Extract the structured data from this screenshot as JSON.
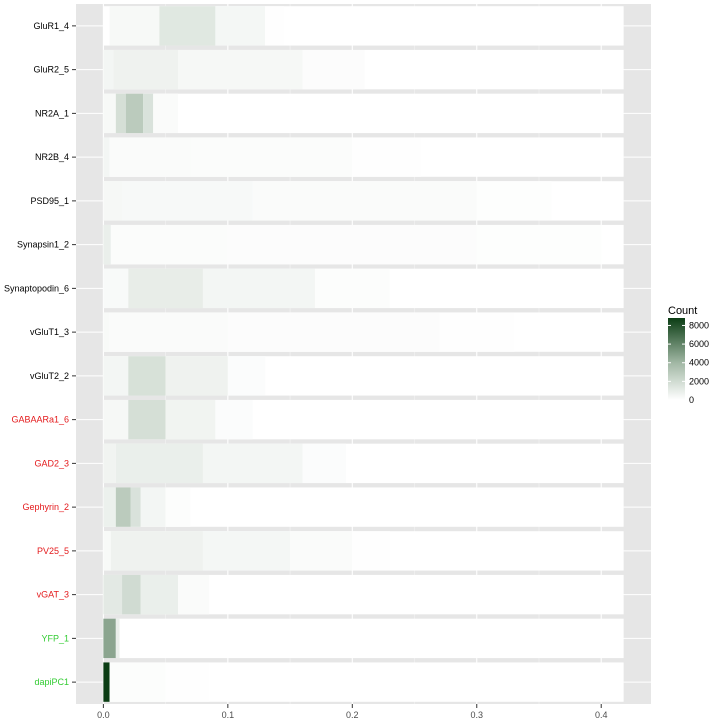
{
  "chart_data": {
    "type": "heatmap",
    "xlabel": "",
    "ylabel": "",
    "xlim": [
      -0.022,
      0.44
    ],
    "x_ticks": [
      0.0,
      0.1,
      0.2,
      0.3,
      0.4
    ],
    "x_tick_labels": [
      "0.0",
      "0.1",
      "0.2",
      "0.3",
      "0.4"
    ],
    "grid": true,
    "colors": {
      "low": "#ffffff",
      "high": "#0b3d14",
      "panel_bg": "#e6e6e6"
    },
    "legend": {
      "title": "Count",
      "placement": "right",
      "ticks": [
        0,
        2000,
        4000,
        6000,
        8000
      ],
      "tick_labels": [
        "0",
        "2000",
        "4000",
        "6000",
        "8000"
      ],
      "max": 8800
    },
    "rows": [
      {
        "label": "GluR1_4",
        "label_color": "#000000",
        "bins": [
          [
            0.005,
            0.045,
            350
          ],
          [
            0.045,
            0.09,
            1300
          ],
          [
            0.09,
            0.13,
            450
          ],
          [
            0.13,
            0.145,
            60
          ]
        ]
      },
      {
        "label": "GluR2_5",
        "label_color": "#000000",
        "bins": [
          [
            0.0,
            0.008,
            500
          ],
          [
            0.008,
            0.06,
            700
          ],
          [
            0.06,
            0.16,
            380
          ],
          [
            0.16,
            0.21,
            140
          ]
        ]
      },
      {
        "label": "NR2A_1",
        "label_color": "#000000",
        "bins": [
          [
            0.0,
            0.01,
            350
          ],
          [
            0.01,
            0.018,
            1800
          ],
          [
            0.018,
            0.032,
            2900
          ],
          [
            0.032,
            0.04,
            1600
          ],
          [
            0.04,
            0.06,
            200
          ]
        ]
      },
      {
        "label": "NR2B_4",
        "label_color": "#000000",
        "bins": [
          [
            0.0,
            0.005,
            500
          ],
          [
            0.005,
            0.07,
            230
          ],
          [
            0.07,
            0.2,
            160
          ],
          [
            0.2,
            0.255,
            60
          ]
        ]
      },
      {
        "label": "PSD95_1",
        "label_color": "#000000",
        "bins": [
          [
            0.0,
            0.015,
            380
          ],
          [
            0.015,
            0.12,
            320
          ],
          [
            0.12,
            0.3,
            200
          ],
          [
            0.3,
            0.36,
            70
          ]
        ]
      },
      {
        "label": "Synapsin1_2",
        "label_color": "#000000",
        "bins": [
          [
            0.0,
            0.006,
            900
          ],
          [
            0.006,
            0.1,
            180
          ],
          [
            0.1,
            0.3,
            140
          ],
          [
            0.3,
            0.4,
            70
          ]
        ]
      },
      {
        "label": "Synaptopodin_6",
        "label_color": "#000000",
        "bins": [
          [
            0.0,
            0.02,
            280
          ],
          [
            0.02,
            0.08,
            1000
          ],
          [
            0.08,
            0.17,
            500
          ],
          [
            0.17,
            0.23,
            120
          ]
        ]
      },
      {
        "label": "vGluT1_3",
        "label_color": "#000000",
        "bins": [
          [
            0.0,
            0.005,
            300
          ],
          [
            0.005,
            0.1,
            220
          ],
          [
            0.1,
            0.27,
            140
          ],
          [
            0.27,
            0.33,
            50
          ]
        ]
      },
      {
        "label": "vGluT2_2",
        "label_color": "#000000",
        "bins": [
          [
            0.0,
            0.02,
            500
          ],
          [
            0.02,
            0.05,
            1700
          ],
          [
            0.05,
            0.1,
            700
          ],
          [
            0.1,
            0.13,
            150
          ]
        ]
      },
      {
        "label": "GABAARa1_6",
        "label_color": "#e41a1c",
        "bins": [
          [
            0.0,
            0.02,
            400
          ],
          [
            0.02,
            0.05,
            1800
          ],
          [
            0.05,
            0.09,
            600
          ],
          [
            0.09,
            0.12,
            150
          ]
        ]
      },
      {
        "label": "GAD2_3",
        "label_color": "#e41a1c",
        "bins": [
          [
            0.0,
            0.01,
            600
          ],
          [
            0.01,
            0.08,
            900
          ],
          [
            0.08,
            0.16,
            500
          ],
          [
            0.16,
            0.195,
            150
          ]
        ]
      },
      {
        "label": "Gephyrin_2",
        "label_color": "#e41a1c",
        "bins": [
          [
            0.0,
            0.01,
            800
          ],
          [
            0.01,
            0.022,
            2900
          ],
          [
            0.022,
            0.03,
            1600
          ],
          [
            0.03,
            0.05,
            500
          ],
          [
            0.05,
            0.07,
            120
          ]
        ]
      },
      {
        "label": "PV25_5",
        "label_color": "#e41a1c",
        "bins": [
          [
            0.0,
            0.006,
            300
          ],
          [
            0.006,
            0.08,
            700
          ],
          [
            0.08,
            0.15,
            450
          ],
          [
            0.15,
            0.2,
            200
          ],
          [
            0.2,
            0.23,
            60
          ]
        ]
      },
      {
        "label": "vGAT_3",
        "label_color": "#e41a1c",
        "bins": [
          [
            0.0,
            0.015,
            1200
          ],
          [
            0.015,
            0.03,
            2000
          ],
          [
            0.03,
            0.06,
            900
          ],
          [
            0.06,
            0.085,
            200
          ]
        ]
      },
      {
        "label": "YFP_1",
        "label_color": "#33cc33",
        "bins": [
          [
            0.0,
            0.01,
            4700
          ],
          [
            0.01,
            0.013,
            900
          ]
        ]
      },
      {
        "label": "dapiPC1",
        "label_color": "#33cc33",
        "bins": [
          [
            0.0,
            0.005,
            8800
          ],
          [
            0.005,
            0.05,
            120
          ],
          [
            0.05,
            0.085,
            60
          ]
        ]
      }
    ]
  }
}
